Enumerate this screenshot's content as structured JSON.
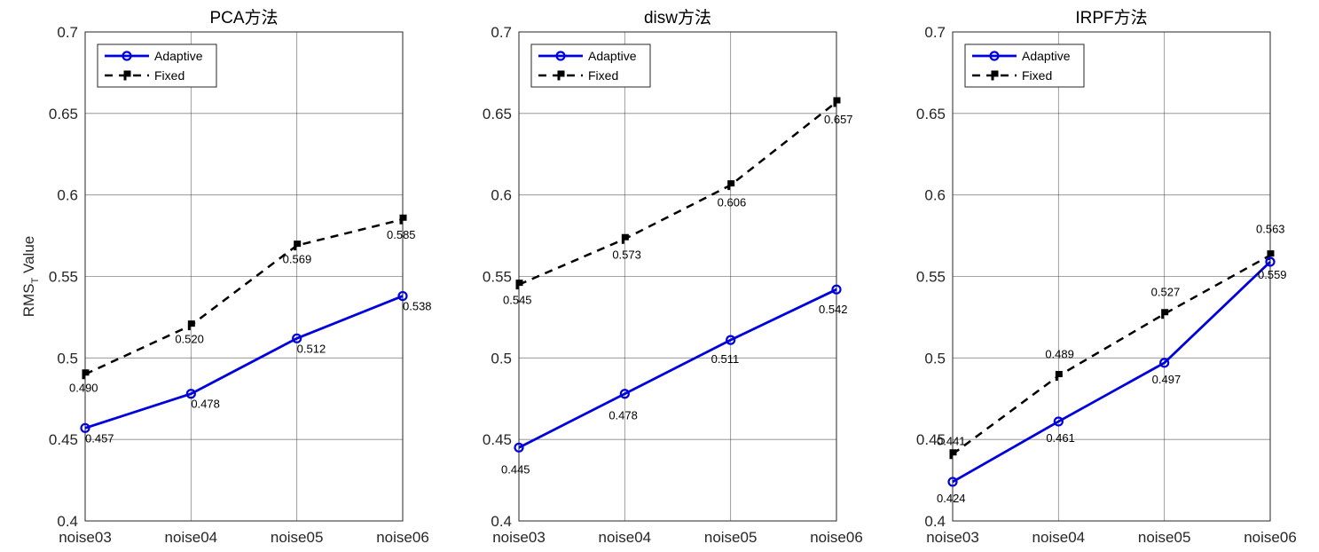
{
  "chart_data": [
    {
      "type": "line",
      "title": "PCA方法",
      "ylabel": "RMS",
      "ylabel_subscript": "T",
      "ylabel_suffix": " Value",
      "categories": [
        "noise03",
        "noise04",
        "noise05",
        "noise06"
      ],
      "ylim": [
        0.4,
        0.7
      ],
      "yticks": [
        0.4,
        0.45,
        0.5,
        0.55,
        0.6,
        0.65,
        0.7
      ],
      "ytick_labels": [
        "0.4",
        "0.45",
        "0.5",
        "0.55",
        "0.6",
        "0.65",
        "0.7"
      ],
      "grid": true,
      "legend_position": "top-left",
      "series": [
        {
          "name": "Adaptive",
          "values": [
            0.457,
            0.478,
            0.512,
            0.538
          ],
          "labels": [
            "0.457",
            "0.478",
            "0.512",
            "0.538"
          ],
          "color": "#0000dd",
          "style": "solid",
          "marker": "circle"
        },
        {
          "name": "Fixed",
          "values": [
            0.49,
            0.52,
            0.569,
            0.585
          ],
          "labels": [
            "0.490",
            "0.520",
            "0.569",
            "0.585"
          ],
          "color": "#000000",
          "style": "dashed",
          "marker": "square"
        }
      ]
    },
    {
      "type": "line",
      "title": "disw方法",
      "categories": [
        "noise03",
        "noise04",
        "noise05",
        "noise06"
      ],
      "ylim": [
        0.4,
        0.7
      ],
      "yticks": [
        0.4,
        0.45,
        0.5,
        0.55,
        0.6,
        0.65,
        0.7
      ],
      "ytick_labels": [
        "0.4",
        "0.45",
        "0.5",
        "0.55",
        "0.6",
        "0.65",
        "0.7"
      ],
      "grid": true,
      "legend_position": "top-left",
      "series": [
        {
          "name": "Adaptive",
          "values": [
            0.445,
            0.478,
            0.511,
            0.542
          ],
          "labels": [
            "0.445",
            "0.478",
            "0.511",
            "0.542"
          ],
          "color": "#0000dd",
          "style": "solid",
          "marker": "circle"
        },
        {
          "name": "Fixed",
          "values": [
            0.545,
            0.573,
            0.606,
            0.657
          ],
          "labels": [
            "0.545",
            "0.573",
            "0.606",
            "0.657"
          ],
          "color": "#000000",
          "style": "dashed",
          "marker": "square"
        }
      ]
    },
    {
      "type": "line",
      "title": "IRPF方法",
      "categories": [
        "noise03",
        "noise04",
        "noise05",
        "noise06"
      ],
      "ylim": [
        0.4,
        0.7
      ],
      "yticks": [
        0.4,
        0.45,
        0.5,
        0.55,
        0.6,
        0.65,
        0.7
      ],
      "ytick_labels": [
        "0.4",
        "0.45",
        "0.5",
        "0.55",
        "0.6",
        "0.65",
        "0.7"
      ],
      "grid": true,
      "legend_position": "top-left",
      "series": [
        {
          "name": "Adaptive",
          "values": [
            0.424,
            0.461,
            0.497,
            0.559
          ],
          "labels": [
            "0.424",
            "0.461",
            "0.497",
            "0.559"
          ],
          "color": "#0000dd",
          "style": "solid",
          "marker": "circle"
        },
        {
          "name": "Fixed",
          "values": [
            0.441,
            0.489,
            0.527,
            0.563
          ],
          "labels": [
            "0.441",
            "0.489",
            "0.527",
            "0.563"
          ],
          "color": "#000000",
          "style": "dashed",
          "marker": "square"
        }
      ]
    }
  ]
}
